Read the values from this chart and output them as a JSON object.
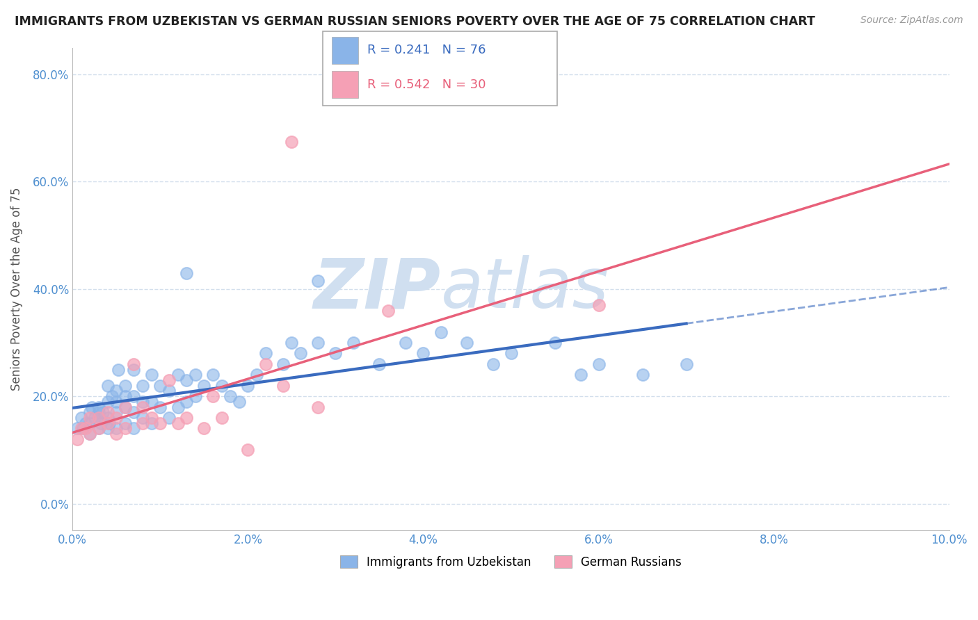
{
  "title": "IMMIGRANTS FROM UZBEKISTAN VS GERMAN RUSSIAN SENIORS POVERTY OVER THE AGE OF 75 CORRELATION CHART",
  "source": "Source: ZipAtlas.com",
  "ylabel": "Seniors Poverty Over the Age of 75",
  "xlim": [
    0.0,
    0.1
  ],
  "ylim": [
    -0.05,
    0.85
  ],
  "xtick_labels": [
    "0.0%",
    "2.0%",
    "4.0%",
    "6.0%",
    "8.0%",
    "10.0%"
  ],
  "ytick_labels": [
    "0.0%",
    "20.0%",
    "40.0%",
    "60.0%",
    "80.0%"
  ],
  "R_blue": 0.241,
  "N_blue": 76,
  "R_pink": 0.542,
  "N_pink": 30,
  "blue_color": "#8ab4e8",
  "pink_color": "#f5a0b5",
  "blue_line_color": "#3a6bbf",
  "pink_line_color": "#e8607a",
  "watermark": "ZIPatlas",
  "watermark_color": "#d0dff0",
  "legend_label_blue": "Immigrants from Uzbekistan",
  "legend_label_pink": "German Russians",
  "blue_x": [
    0.0005,
    0.001,
    0.0012,
    0.0015,
    0.002,
    0.002,
    0.002,
    0.0022,
    0.0025,
    0.003,
    0.003,
    0.003,
    0.003,
    0.0032,
    0.0035,
    0.004,
    0.004,
    0.004,
    0.004,
    0.0042,
    0.0045,
    0.005,
    0.005,
    0.005,
    0.005,
    0.0052,
    0.006,
    0.006,
    0.006,
    0.006,
    0.007,
    0.007,
    0.007,
    0.007,
    0.008,
    0.008,
    0.008,
    0.009,
    0.009,
    0.009,
    0.01,
    0.01,
    0.011,
    0.011,
    0.012,
    0.012,
    0.013,
    0.013,
    0.014,
    0.014,
    0.015,
    0.016,
    0.017,
    0.018,
    0.019,
    0.02,
    0.021,
    0.022,
    0.024,
    0.025,
    0.026,
    0.028,
    0.03,
    0.032,
    0.035,
    0.038,
    0.04,
    0.042,
    0.045,
    0.048,
    0.05,
    0.055,
    0.058,
    0.06,
    0.065,
    0.07
  ],
  "blue_y": [
    0.14,
    0.16,
    0.14,
    0.15,
    0.13,
    0.15,
    0.17,
    0.18,
    0.16,
    0.14,
    0.16,
    0.17,
    0.18,
    0.15,
    0.17,
    0.14,
    0.16,
    0.19,
    0.22,
    0.15,
    0.2,
    0.14,
    0.17,
    0.19,
    0.21,
    0.25,
    0.15,
    0.18,
    0.2,
    0.22,
    0.14,
    0.17,
    0.2,
    0.25,
    0.16,
    0.19,
    0.22,
    0.15,
    0.19,
    0.24,
    0.18,
    0.22,
    0.16,
    0.21,
    0.18,
    0.24,
    0.19,
    0.23,
    0.2,
    0.24,
    0.22,
    0.24,
    0.22,
    0.2,
    0.19,
    0.22,
    0.24,
    0.28,
    0.26,
    0.3,
    0.28,
    0.3,
    0.28,
    0.3,
    0.26,
    0.3,
    0.28,
    0.32,
    0.3,
    0.26,
    0.28,
    0.3,
    0.24,
    0.26,
    0.24,
    0.26
  ],
  "pink_x": [
    0.0005,
    0.001,
    0.0015,
    0.002,
    0.002,
    0.003,
    0.003,
    0.004,
    0.004,
    0.005,
    0.005,
    0.006,
    0.006,
    0.007,
    0.008,
    0.008,
    0.009,
    0.01,
    0.011,
    0.012,
    0.013,
    0.015,
    0.016,
    0.017,
    0.02,
    0.022,
    0.024,
    0.028,
    0.036,
    0.06
  ],
  "pink_y": [
    0.12,
    0.14,
    0.14,
    0.13,
    0.16,
    0.14,
    0.16,
    0.15,
    0.17,
    0.13,
    0.16,
    0.14,
    0.18,
    0.26,
    0.15,
    0.18,
    0.16,
    0.15,
    0.23,
    0.15,
    0.16,
    0.14,
    0.2,
    0.16,
    0.1,
    0.26,
    0.22,
    0.18,
    0.36,
    0.37
  ]
}
